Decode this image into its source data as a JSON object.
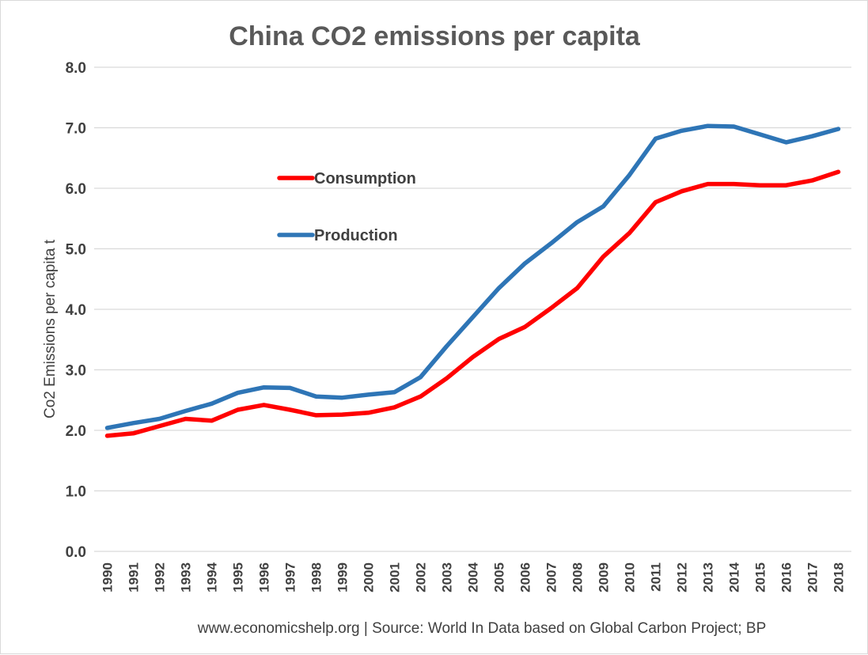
{
  "chart_data": {
    "type": "line",
    "title": "China CO2 emissions per capita",
    "xlabel": "",
    "ylabel": "Co2 Emissions per capita t",
    "ylim": [
      0,
      8
    ],
    "yticks": [
      "0.0",
      "1.0",
      "2.0",
      "3.0",
      "4.0",
      "5.0",
      "6.0",
      "7.0",
      "8.0"
    ],
    "grid": true,
    "legend_position": "upper-left inside plot",
    "categories": [
      "1990",
      "1991",
      "1992",
      "1993",
      "1994",
      "1995",
      "1996",
      "1997",
      "1998",
      "1999",
      "2000",
      "2001",
      "2002",
      "2003",
      "2004",
      "2005",
      "2006",
      "2007",
      "2008",
      "2009",
      "2010",
      "2011",
      "2012",
      "2013",
      "2014",
      "2015",
      "2016",
      "2017",
      "2018"
    ],
    "series": [
      {
        "name": "Consumption",
        "color": "#ff0000",
        "values": [
          1.91,
          1.95,
          2.07,
          2.19,
          2.16,
          2.34,
          2.42,
          2.34,
          2.25,
          2.26,
          2.29,
          2.38,
          2.56,
          2.86,
          3.21,
          3.51,
          3.71,
          4.02,
          4.35,
          4.87,
          5.26,
          5.77,
          5.95,
          6.07,
          6.07,
          6.05,
          6.05,
          6.13,
          6.27
        ]
      },
      {
        "name": "Production",
        "color": "#2e75b6",
        "values": [
          2.04,
          2.12,
          2.19,
          2.32,
          2.44,
          2.62,
          2.71,
          2.7,
          2.56,
          2.54,
          2.59,
          2.63,
          2.88,
          3.39,
          3.87,
          4.35,
          4.76,
          5.09,
          5.44,
          5.7,
          6.22,
          6.82,
          6.95,
          7.03,
          7.02,
          6.89,
          6.76,
          6.86,
          6.98
        ]
      }
    ]
  },
  "source_note": "www.economicshelp.org  | Source: World In Data based on Global Carbon Project; BP"
}
